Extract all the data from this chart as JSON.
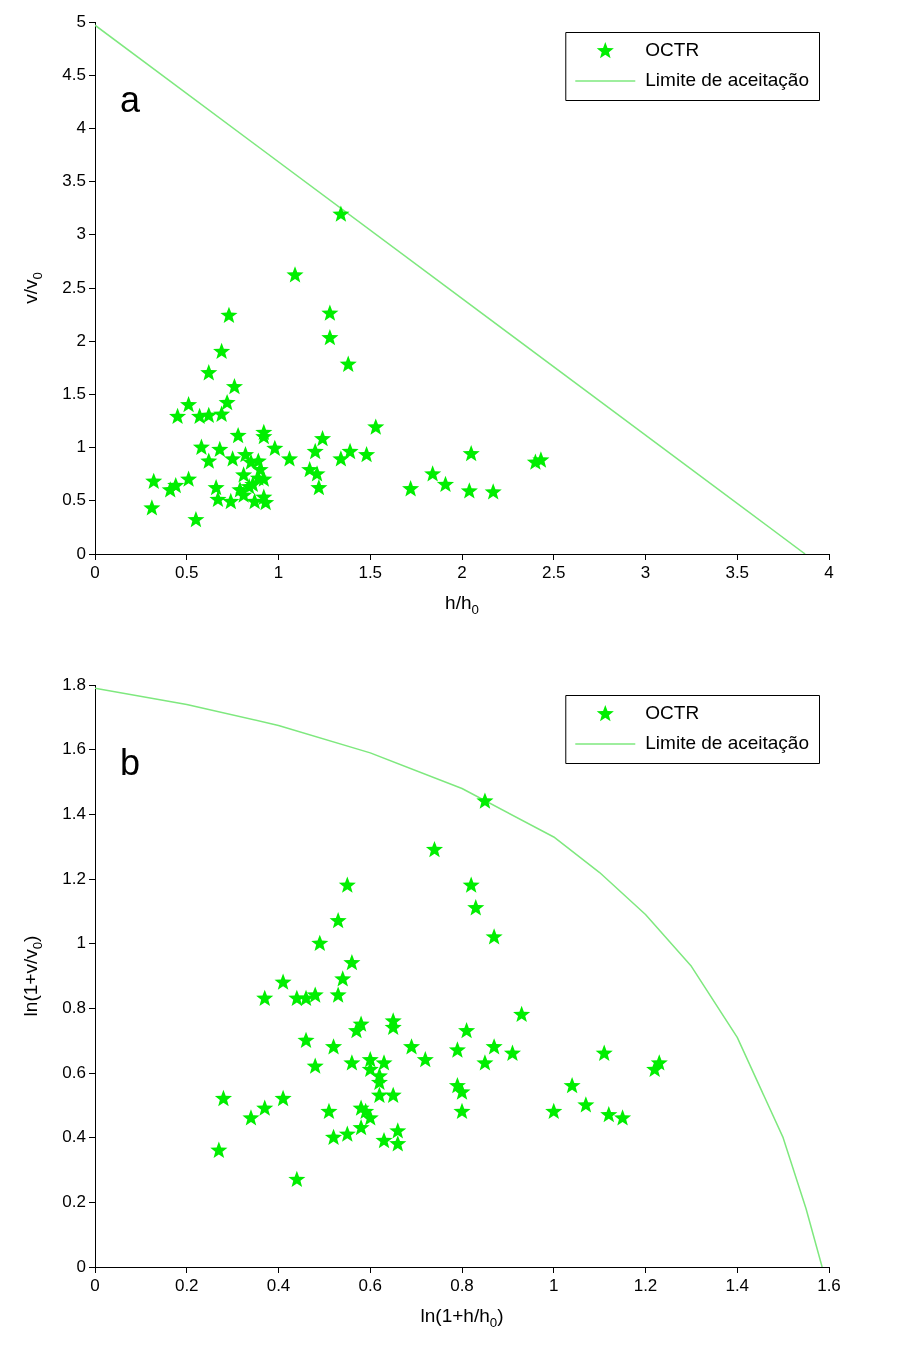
{
  "chart_data": [
    {
      "type": "scatter",
      "annotations": [
        "a"
      ],
      "xlabel": "h/h$_{0}$",
      "ylabel": "v/v$_{0}$",
      "xlim": [
        0,
        4
      ],
      "ylim": [
        0,
        5
      ],
      "xticks": [
        0,
        0.5,
        1,
        1.5,
        2,
        2.5,
        3,
        3.5,
        4
      ],
      "yticks": [
        0,
        0.5,
        1,
        1.5,
        2,
        2.5,
        3,
        3.5,
        4,
        4.5,
        5
      ],
      "legend": "top right",
      "marker": "star",
      "series": [
        {
          "name": "OCTR",
          "color": "#00ee00",
          "x": [
            1.34,
            1.09,
            1.28,
            1.28,
            0.73,
            0.69,
            1.38,
            0.62,
            0.76,
            0.72,
            0.51,
            0.45,
            0.57,
            0.62,
            0.69,
            1.53,
            0.92,
            0.92,
            0.78,
            1.24,
            0.58,
            0.68,
            0.98,
            1.06,
            1.2,
            1.39,
            1.48,
            1.34,
            0.62,
            0.75,
            0.82,
            0.85,
            0.89,
            0.9,
            0.81,
            0.89,
            1.17,
            1.21,
            1.22,
            0.86,
            0.92,
            2.05,
            1.84,
            1.91,
            1.72,
            2.04,
            2.17,
            2.4,
            2.43,
            0.32,
            0.41,
            0.44,
            0.51,
            0.31,
            0.55,
            0.66,
            0.67,
            0.74,
            0.81,
            0.79,
            0.84,
            0.87,
            0.92,
            0.93
          ],
          "values": [
            3.19,
            2.62,
            2.26,
            2.03,
            2.24,
            1.9,
            1.78,
            1.7,
            1.57,
            1.42,
            1.4,
            1.29,
            1.29,
            1.3,
            1.31,
            1.19,
            1.14,
            1.1,
            1.11,
            1.08,
            1.0,
            0.98,
            0.99,
            0.89,
            0.96,
            0.96,
            0.93,
            0.89,
            0.87,
            0.89,
            0.93,
            0.86,
            0.87,
            0.79,
            0.74,
            0.71,
            0.79,
            0.75,
            0.62,
            0.65,
            0.7,
            0.94,
            0.75,
            0.65,
            0.61,
            0.59,
            0.58,
            0.86,
            0.88,
            0.68,
            0.6,
            0.64,
            0.7,
            0.43,
            0.32,
            0.62,
            0.51,
            0.49,
            0.55,
            0.6,
            0.63,
            0.49,
            0.53,
            0.48
          ]
        },
        {
          "name": "Limite de aceitação",
          "type": "line",
          "marker": "none",
          "color": "#7ee87e",
          "x": [
            0,
            3.87
          ],
          "values": [
            4.97,
            0
          ]
        }
      ]
    },
    {
      "type": "scatter",
      "annotations": [
        "b"
      ],
      "xlabel": "ln(1+h/h$_{0}$)",
      "ylabel": "ln(1+v/v$_{0}$)",
      "xlim": [
        0,
        1.6
      ],
      "ylim": [
        0,
        1.8
      ],
      "xticks": [
        0,
        0.2,
        0.4,
        0.6,
        0.8,
        1,
        1.2,
        1.4,
        1.6
      ],
      "yticks": [
        0,
        0.2,
        0.4,
        0.6,
        0.8,
        1,
        1.2,
        1.4,
        1.6,
        1.8
      ],
      "legend": "top right",
      "marker": "star",
      "series": [
        {
          "name": "OCTR",
          "color": "#00ee00",
          "x": [
            0.85,
            0.74,
            0.82,
            0.83,
            0.87,
            0.55,
            0.53,
            0.49,
            0.56,
            0.41,
            0.54,
            0.53,
            0.48,
            0.46,
            0.44,
            0.37,
            0.93,
            0.58,
            0.57,
            0.65,
            0.65,
            0.81,
            0.46,
            0.52,
            0.69,
            0.87,
            0.79,
            0.91,
            1.11,
            0.72,
            0.85,
            1.23,
            1.22,
            0.48,
            0.56,
            0.6,
            0.63,
            0.6,
            0.62,
            0.62,
            0.62,
            0.65,
            0.79,
            0.8,
            0.8,
            1.04,
            1.07,
            1.12,
            1.15,
            1.0,
            0.28,
            0.41,
            0.37,
            0.34,
            0.51,
            0.58,
            0.6,
            0.58,
            0.59,
            0.55,
            0.52,
            0.63,
            0.66,
            0.66,
            0.27,
            0.44
          ],
          "values": [
            1.44,
            1.29,
            1.18,
            1.11,
            1.02,
            1.18,
            1.07,
            1.0,
            0.94,
            0.88,
            0.89,
            0.84,
            0.84,
            0.83,
            0.83,
            0.83,
            0.78,
            0.75,
            0.73,
            0.76,
            0.74,
            0.73,
            0.7,
            0.68,
            0.68,
            0.68,
            0.67,
            0.66,
            0.66,
            0.64,
            0.63,
            0.63,
            0.61,
            0.62,
            0.63,
            0.64,
            0.63,
            0.61,
            0.59,
            0.57,
            0.53,
            0.53,
            0.56,
            0.54,
            0.48,
            0.56,
            0.5,
            0.47,
            0.46,
            0.48,
            0.52,
            0.52,
            0.49,
            0.46,
            0.48,
            0.49,
            0.46,
            0.43,
            0.48,
            0.41,
            0.4,
            0.39,
            0.38,
            0.42,
            0.36,
            0.27
          ]
        },
        {
          "name": "Limite de aceitação",
          "type": "line",
          "marker": "none",
          "color": "#7ee87e",
          "x": [
            0,
            0.2,
            0.4,
            0.6,
            0.8,
            1,
            1.1,
            1.2,
            1.3,
            1.4,
            1.5,
            1.55,
            1.585
          ],
          "values": [
            1.79,
            1.74,
            1.675,
            1.59,
            1.48,
            1.33,
            1.22,
            1.09,
            0.93,
            0.71,
            0.4,
            0.18,
            0
          ]
        }
      ]
    }
  ]
}
